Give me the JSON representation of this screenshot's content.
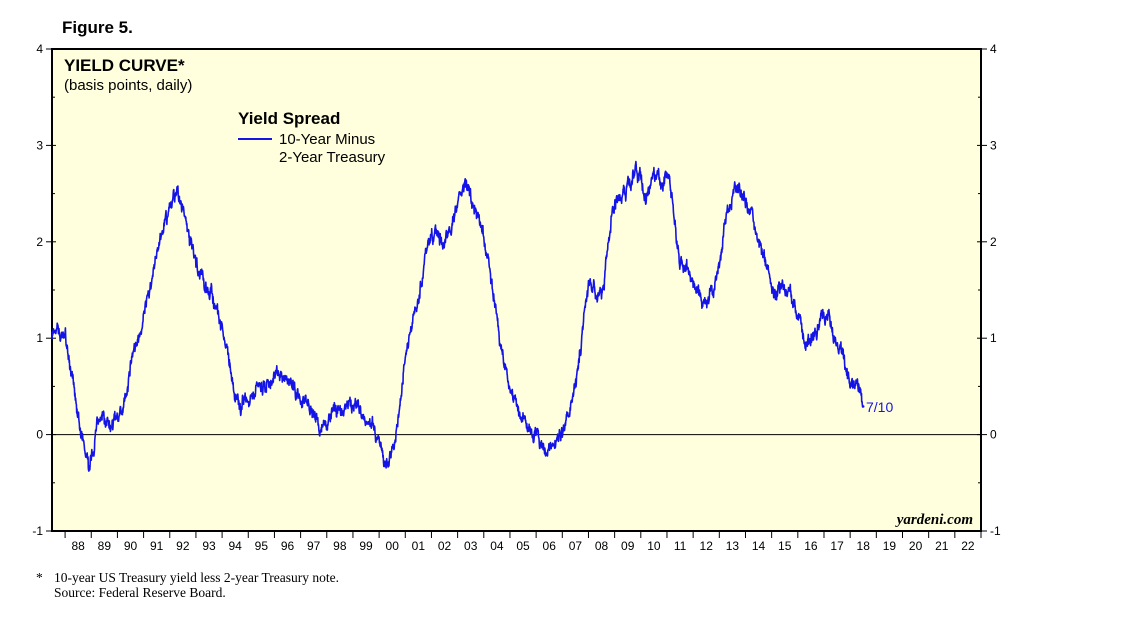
{
  "figure_label": "Figure 5.",
  "footnote": {
    "marker": "*",
    "line1": "10-year US Treasury yield less 2-year Treasury note.",
    "line2": "Source: Federal Reserve Board."
  },
  "colors": {
    "series": "#1414e6",
    "plot_bg": "#ffffde",
    "frame": "#000000"
  },
  "chart_data": {
    "type": "line",
    "title": "YIELD CURVE*",
    "subtitle": "(basis points, daily)",
    "legend_title": "Yield Spread",
    "legend_entries": [
      "10-Year Minus",
      "2-Year Treasury"
    ],
    "watermark": "yardeni.com",
    "end_label": "7/10",
    "ylim": [
      -1,
      4
    ],
    "y_ticks": [
      -1,
      0,
      1,
      2,
      3,
      4
    ],
    "xlim": [
      1987.5,
      2023.0
    ],
    "x_tick_labels": [
      "88",
      "89",
      "90",
      "91",
      "92",
      "93",
      "94",
      "95",
      "96",
      "97",
      "98",
      "99",
      "00",
      "01",
      "02",
      "03",
      "04",
      "05",
      "06",
      "07",
      "08",
      "09",
      "10",
      "11",
      "12",
      "13",
      "14",
      "15",
      "16",
      "17",
      "18",
      "19",
      "20",
      "21",
      "22"
    ],
    "zero_line": 0,
    "series": [
      {
        "name": "10-Year Minus 2-Year Treasury",
        "x": [
          1987.5,
          1987.7,
          1988.0,
          1988.3,
          1988.6,
          1988.9,
          1989.1,
          1989.4,
          1989.7,
          1990.0,
          1990.3,
          1990.6,
          1990.9,
          1991.2,
          1991.5,
          1991.8,
          1992.0,
          1992.3,
          1992.6,
          1992.8,
          1993.0,
          1993.3,
          1993.6,
          1993.9,
          1994.2,
          1994.5,
          1994.7,
          1994.9,
          1995.0,
          1995.3,
          1995.6,
          1995.9,
          1996.2,
          1996.5,
          1996.8,
          1997.1,
          1997.4,
          1997.7,
          1998.0,
          1998.3,
          1998.6,
          1998.9,
          1999.2,
          1999.5,
          1999.8,
          2000.0,
          2000.2,
          2000.5,
          2000.8,
          2001.0,
          2001.3,
          2001.6,
          2001.9,
          2002.2,
          2002.5,
          2002.8,
          2003.1,
          2003.3,
          2003.5,
          2003.8,
          2004.1,
          2004.4,
          2004.7,
          2005.0,
          2005.3,
          2005.6,
          2005.9,
          2006.2,
          2006.5,
          2006.8,
          2007.1,
          2007.4,
          2007.7,
          2008.0,
          2008.3,
          2008.6,
          2008.9,
          2009.2,
          2009.5,
          2009.8,
          2010.0,
          2010.2,
          2010.5,
          2010.8,
          2011.0,
          2011.2,
          2011.5,
          2011.8,
          2012.1,
          2012.4,
          2012.7,
          2013.0,
          2013.3,
          2013.6,
          2013.9,
          2014.2,
          2014.5,
          2014.8,
          2015.1,
          2015.4,
          2015.7,
          2016.0,
          2016.3,
          2016.6,
          2016.9,
          2017.1,
          2017.4,
          2017.7,
          2018.0,
          2018.3,
          2018.52
        ],
        "y": [
          1.05,
          1.15,
          1.0,
          0.6,
          0.05,
          -0.35,
          -0.1,
          0.2,
          0.05,
          0.15,
          0.35,
          0.9,
          1.05,
          1.4,
          1.9,
          2.2,
          2.3,
          2.55,
          2.2,
          2.0,
          1.8,
          1.6,
          1.45,
          1.15,
          0.9,
          0.35,
          0.25,
          0.35,
          0.3,
          0.45,
          0.5,
          0.55,
          0.6,
          0.55,
          0.45,
          0.3,
          0.25,
          0.15,
          0.05,
          0.3,
          0.2,
          0.25,
          0.3,
          0.15,
          0.05,
          -0.1,
          -0.35,
          -0.2,
          0.3,
          0.8,
          1.25,
          1.6,
          2.0,
          2.1,
          1.95,
          2.2,
          2.5,
          2.6,
          2.45,
          2.25,
          1.95,
          1.4,
          0.8,
          0.5,
          0.25,
          0.1,
          0.05,
          -0.05,
          -0.1,
          -0.1,
          0.05,
          0.35,
          0.9,
          1.6,
          1.45,
          1.55,
          2.3,
          2.45,
          2.6,
          2.75,
          2.7,
          2.4,
          2.75,
          2.6,
          2.7,
          2.4,
          1.8,
          1.7,
          1.5,
          1.35,
          1.45,
          1.8,
          2.35,
          2.5,
          2.5,
          2.3,
          2.0,
          1.75,
          1.4,
          1.6,
          1.5,
          1.2,
          0.95,
          1.0,
          1.2,
          1.25,
          1.0,
          0.85,
          0.6,
          0.5,
          0.3
        ]
      }
    ]
  }
}
